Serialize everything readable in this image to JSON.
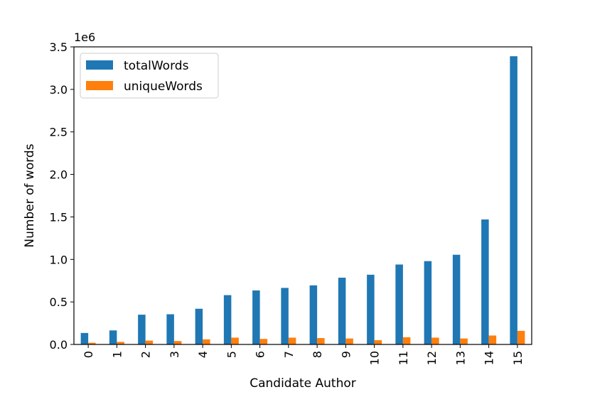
{
  "chart_data": {
    "type": "bar",
    "xlabel": "Candidate Author",
    "ylabel": "Number of words",
    "y_offset_label": "1e6",
    "categories": [
      "0",
      "1",
      "2",
      "3",
      "4",
      "5",
      "6",
      "7",
      "8",
      "9",
      "10",
      "11",
      "12",
      "13",
      "14",
      "15"
    ],
    "series": [
      {
        "name": "totalWords",
        "color": "#1f77b4",
        "values": [
          0.135,
          0.165,
          0.35,
          0.355,
          0.42,
          0.58,
          0.635,
          0.665,
          0.695,
          0.785,
          0.82,
          0.94,
          0.98,
          1.055,
          1.47,
          3.39
        ]
      },
      {
        "name": "uniqueWords",
        "color": "#ff7f0e",
        "values": [
          0.02,
          0.03,
          0.045,
          0.04,
          0.06,
          0.08,
          0.065,
          0.08,
          0.075,
          0.07,
          0.05,
          0.085,
          0.08,
          0.07,
          0.105,
          0.16
        ]
      }
    ],
    "yticks": [
      "0.0",
      "0.5",
      "1.0",
      "1.5",
      "2.0",
      "2.5",
      "3.0",
      "3.5"
    ],
    "ylim": [
      0,
      3.5
    ],
    "grid": false,
    "legend_position": "top-left"
  }
}
